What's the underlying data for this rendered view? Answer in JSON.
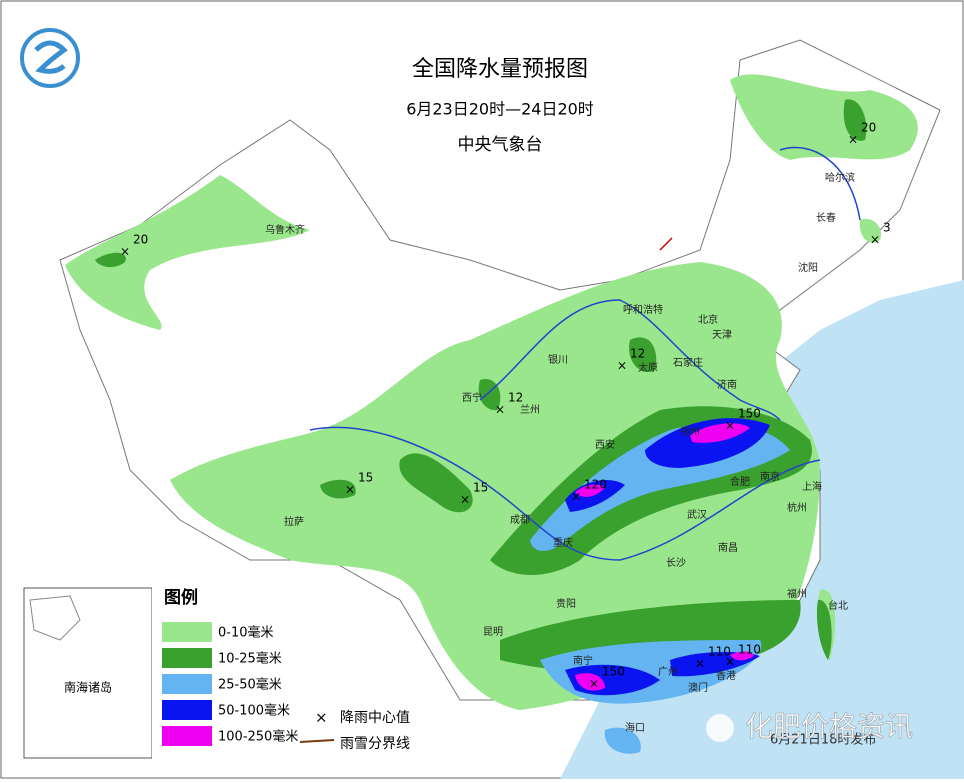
{
  "header": {
    "title": "全国降水量预报图",
    "period": "6月23日20时—24日20时",
    "issuer": "中央气象台"
  },
  "legend": {
    "title": "图例",
    "items": [
      {
        "label": "0-10毫米",
        "color": "#99e68c"
      },
      {
        "label": "10-25毫米",
        "color": "#3aa02e"
      },
      {
        "label": "25-50毫米",
        "color": "#63b4f0"
      },
      {
        "label": "50-100毫米",
        "color": "#0a14f0"
      },
      {
        "label": "100-250毫米",
        "color": "#f000f0"
      }
    ],
    "center_symbol": "降雨中心值",
    "rain_snow_line": "雨雪分界线"
  },
  "inset": {
    "label": "南海诸岛"
  },
  "cities": [
    "乌鲁木齐",
    "哈尔滨",
    "长春",
    "沈阳",
    "呼和浩特",
    "北京",
    "天津",
    "石家庄",
    "太原",
    "银川",
    "西宁",
    "兰州",
    "济南",
    "郑州",
    "西安",
    "合肥",
    "南京",
    "上海",
    "杭州",
    "武汉",
    "成都",
    "重庆",
    "拉萨",
    "长沙",
    "南昌",
    "贵阳",
    "福州",
    "台北",
    "昆明",
    "南宁",
    "广州",
    "香港",
    "澳门",
    "海口"
  ],
  "rain_centers": [
    20,
    20,
    3,
    12,
    12,
    15,
    15,
    120,
    150,
    150,
    110,
    110
  ],
  "footer": {
    "issued": "6月21日18时发布",
    "watermark": "化肥价格资讯"
  }
}
